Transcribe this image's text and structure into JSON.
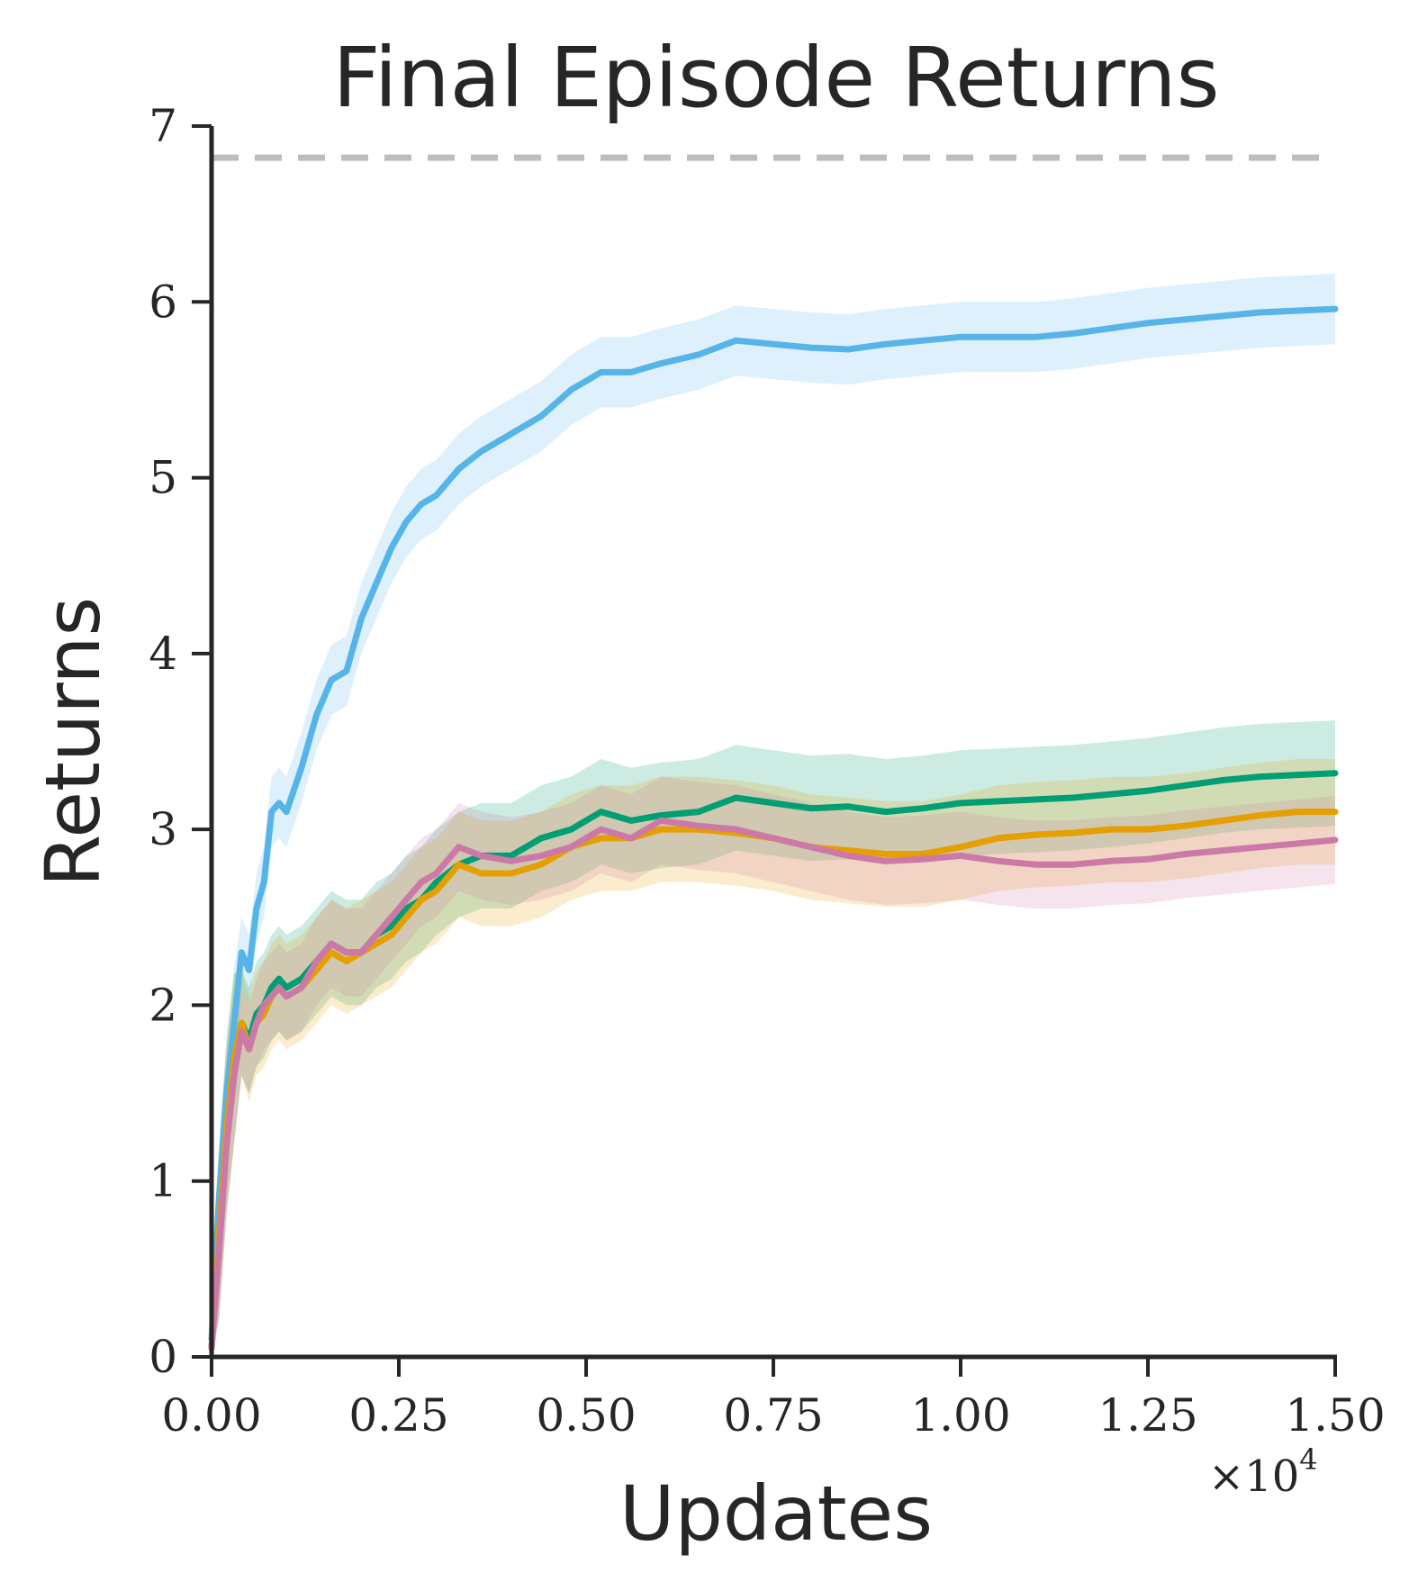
{
  "chart_data": {
    "type": "line",
    "title": "Final Episode Returns",
    "xlabel": "Updates",
    "ylabel": "Returns",
    "x_multiplier": {
      "base": "×10",
      "exponent": "4"
    },
    "xlim": [
      0,
      1.5
    ],
    "ylim": [
      0,
      7
    ],
    "xticks": [
      0,
      0.25,
      0.5,
      0.75,
      1.0,
      1.25,
      1.5
    ],
    "xtick_labels": [
      "0.00",
      "0.25",
      "0.50",
      "0.75",
      "1.00",
      "1.25",
      "1.50"
    ],
    "yticks": [
      0,
      1,
      2,
      3,
      4,
      5,
      6,
      7
    ],
    "ytick_labels": [
      "0",
      "1",
      "2",
      "3",
      "4",
      "5",
      "6",
      "7"
    ],
    "grid": false,
    "reference_line": {
      "y": 6.82,
      "color": "#bdbdbd",
      "style": "dashed"
    },
    "series": [
      {
        "color": "#56b4e9",
        "x": [
          0,
          0.01,
          0.02,
          0.03,
          0.04,
          0.05,
          0.06,
          0.07,
          0.08,
          0.09,
          0.1,
          0.12,
          0.14,
          0.16,
          0.18,
          0.2,
          0.22,
          0.24,
          0.26,
          0.28,
          0.3,
          0.33,
          0.36,
          0.4,
          0.44,
          0.48,
          0.52,
          0.56,
          0.6,
          0.65,
          0.7,
          0.75,
          0.8,
          0.85,
          0.9,
          0.95,
          1.0,
          1.05,
          1.1,
          1.15,
          1.2,
          1.25,
          1.3,
          1.35,
          1.4,
          1.45,
          1.5
        ],
        "values": [
          0.1,
          0.9,
          1.5,
          1.9,
          2.3,
          2.2,
          2.55,
          2.7,
          3.1,
          3.15,
          3.1,
          3.35,
          3.65,
          3.85,
          3.9,
          4.2,
          4.4,
          4.6,
          4.75,
          4.85,
          4.9,
          5.05,
          5.15,
          5.25,
          5.35,
          5.5,
          5.6,
          5.6,
          5.65,
          5.7,
          5.78,
          5.76,
          5.74,
          5.73,
          5.76,
          5.78,
          5.8,
          5.8,
          5.8,
          5.82,
          5.85,
          5.88,
          5.9,
          5.92,
          5.94,
          5.95,
          5.96
        ],
        "band": 0.2
      },
      {
        "color": "#009e73",
        "x": [
          0,
          0.01,
          0.02,
          0.03,
          0.04,
          0.05,
          0.06,
          0.07,
          0.08,
          0.09,
          0.1,
          0.12,
          0.14,
          0.16,
          0.18,
          0.2,
          0.22,
          0.24,
          0.26,
          0.28,
          0.3,
          0.33,
          0.36,
          0.4,
          0.44,
          0.48,
          0.52,
          0.56,
          0.6,
          0.65,
          0.7,
          0.75,
          0.8,
          0.85,
          0.9,
          0.95,
          1.0,
          1.05,
          1.1,
          1.15,
          1.2,
          1.25,
          1.3,
          1.35,
          1.4,
          1.45,
          1.5
        ],
        "values": [
          0.05,
          0.7,
          1.3,
          1.7,
          1.9,
          1.8,
          1.95,
          2.0,
          2.1,
          2.15,
          2.1,
          2.15,
          2.25,
          2.35,
          2.3,
          2.3,
          2.4,
          2.45,
          2.55,
          2.6,
          2.7,
          2.8,
          2.85,
          2.85,
          2.95,
          3.0,
          3.1,
          3.05,
          3.08,
          3.1,
          3.18,
          3.15,
          3.12,
          3.13,
          3.1,
          3.12,
          3.15,
          3.16,
          3.17,
          3.18,
          3.2,
          3.22,
          3.25,
          3.28,
          3.3,
          3.31,
          3.32
        ],
        "band": 0.3
      },
      {
        "color": "#e69f00",
        "x": [
          0,
          0.01,
          0.02,
          0.03,
          0.04,
          0.05,
          0.06,
          0.07,
          0.08,
          0.09,
          0.1,
          0.12,
          0.14,
          0.16,
          0.18,
          0.2,
          0.22,
          0.24,
          0.26,
          0.28,
          0.3,
          0.33,
          0.36,
          0.4,
          0.44,
          0.48,
          0.52,
          0.56,
          0.6,
          0.65,
          0.7,
          0.75,
          0.8,
          0.85,
          0.9,
          0.95,
          1.0,
          1.05,
          1.1,
          1.15,
          1.2,
          1.25,
          1.3,
          1.35,
          1.4,
          1.45,
          1.5
        ],
        "values": [
          0.05,
          0.7,
          1.3,
          1.7,
          1.9,
          1.75,
          1.9,
          1.95,
          2.05,
          2.1,
          2.05,
          2.1,
          2.2,
          2.3,
          2.25,
          2.3,
          2.35,
          2.4,
          2.5,
          2.6,
          2.65,
          2.8,
          2.75,
          2.75,
          2.8,
          2.9,
          2.95,
          2.95,
          3.0,
          3.0,
          2.98,
          2.95,
          2.9,
          2.88,
          2.86,
          2.86,
          2.9,
          2.95,
          2.97,
          2.98,
          3.0,
          3.0,
          3.02,
          3.05,
          3.08,
          3.1,
          3.1
        ],
        "band": 0.3
      },
      {
        "color": "#cc79a7",
        "x": [
          0,
          0.01,
          0.02,
          0.03,
          0.04,
          0.05,
          0.06,
          0.07,
          0.08,
          0.09,
          0.1,
          0.12,
          0.14,
          0.16,
          0.18,
          0.2,
          0.22,
          0.24,
          0.26,
          0.28,
          0.3,
          0.33,
          0.36,
          0.4,
          0.44,
          0.48,
          0.52,
          0.56,
          0.6,
          0.65,
          0.7,
          0.75,
          0.8,
          0.85,
          0.9,
          0.95,
          1.0,
          1.05,
          1.1,
          1.15,
          1.2,
          1.25,
          1.3,
          1.35,
          1.4,
          1.45,
          1.5
        ],
        "values": [
          0.05,
          0.6,
          1.2,
          1.6,
          1.85,
          1.75,
          1.9,
          2.0,
          2.05,
          2.1,
          2.05,
          2.1,
          2.25,
          2.35,
          2.3,
          2.3,
          2.4,
          2.5,
          2.6,
          2.7,
          2.75,
          2.9,
          2.85,
          2.82,
          2.85,
          2.9,
          3.0,
          2.95,
          3.05,
          3.02,
          3.0,
          2.95,
          2.9,
          2.85,
          2.82,
          2.83,
          2.85,
          2.82,
          2.8,
          2.8,
          2.82,
          2.83,
          2.86,
          2.88,
          2.9,
          2.92,
          2.94
        ],
        "band": 0.25
      }
    ]
  }
}
